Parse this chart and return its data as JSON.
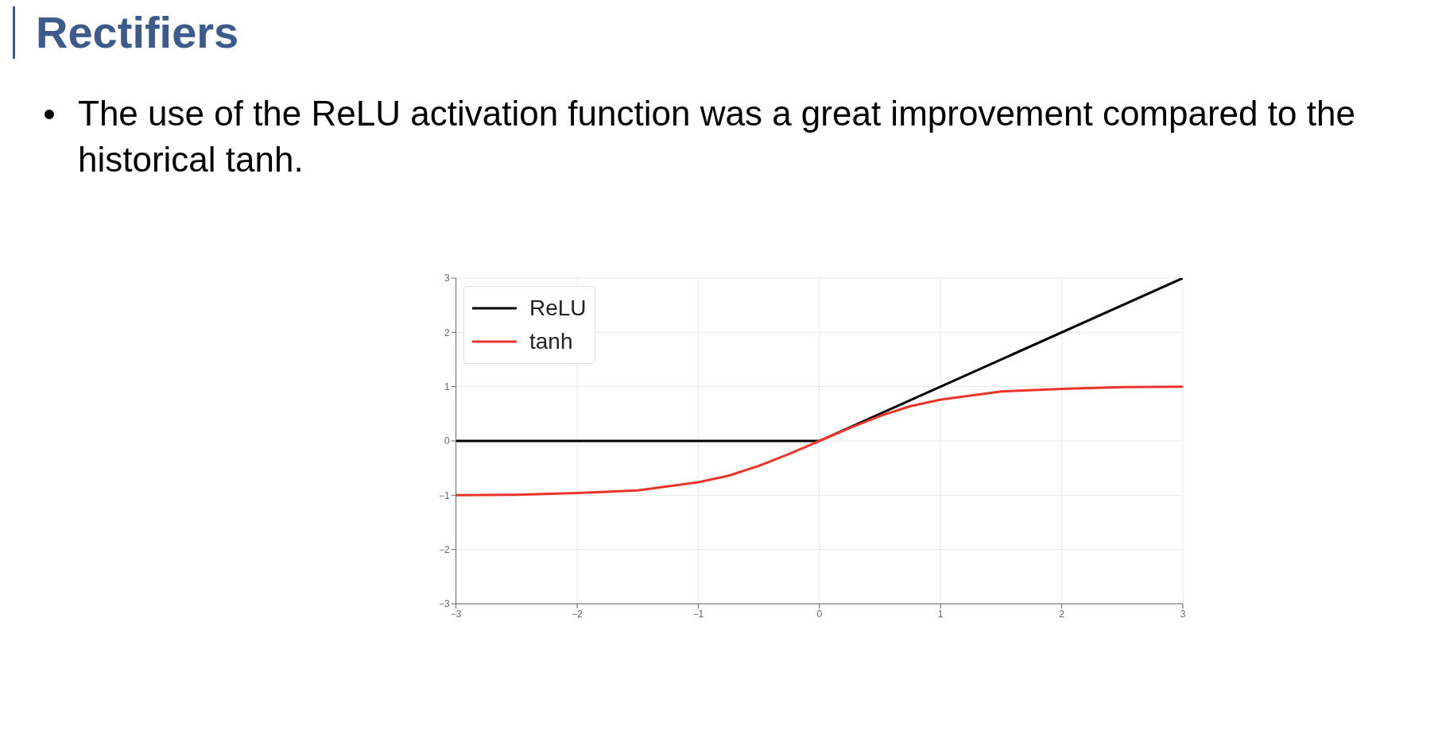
{
  "chart_data": {
    "type": "line",
    "title": "Rectifiers",
    "subtitle": "The use of the ReLU activation function was a great improvement compared to the historical tanh.",
    "xlim": [
      -3,
      3
    ],
    "ylim": [
      -3,
      3
    ],
    "xticks": [
      {
        "value": -3,
        "label": "−3"
      },
      {
        "value": -2,
        "label": "−2"
      },
      {
        "value": -1,
        "label": "−1"
      },
      0,
      1,
      2,
      3
    ],
    "yticks": [
      {
        "value": -3,
        "label": "−3"
      },
      {
        "value": -2,
        "label": "−2"
      },
      {
        "value": -1,
        "label": "−1"
      },
      0,
      1,
      2,
      3
    ],
    "grid": true,
    "legend": "top left",
    "series": [
      {
        "name": "ReLU",
        "color": "#000000",
        "x": [
          -3,
          0,
          3
        ],
        "values": [
          0,
          0,
          3
        ]
      },
      {
        "name": "tanh",
        "color": "#e8352a",
        "x": [
          -3,
          -2.5,
          -2,
          -1.5,
          -1,
          -0.75,
          -0.5,
          -0.25,
          0,
          0.25,
          0.5,
          0.75,
          1,
          1.5,
          2,
          2.5,
          3
        ],
        "values": [
          -1.0,
          -0.99,
          -0.96,
          -0.91,
          -0.76,
          -0.64,
          -0.46,
          -0.24,
          0,
          0.24,
          0.46,
          0.64,
          0.76,
          0.91,
          0.96,
          0.99,
          1.0
        ]
      }
    ]
  }
}
